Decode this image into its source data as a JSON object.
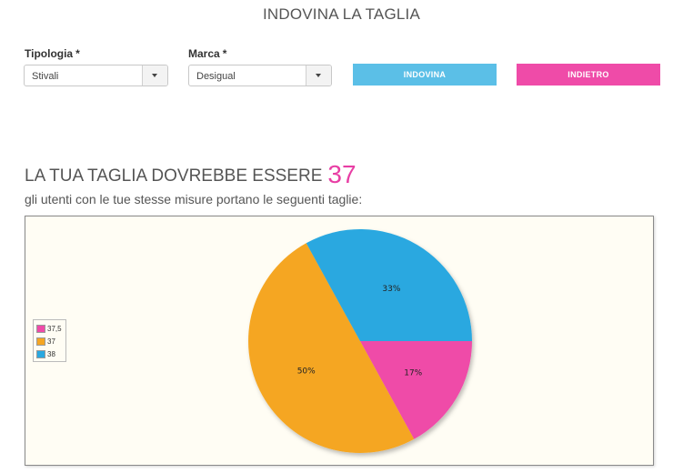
{
  "page": {
    "title": "INDOVINA LA TAGLIA"
  },
  "form": {
    "tipologia": {
      "label": "Tipologia",
      "required_mark": "*",
      "value": "Stivali"
    },
    "marca": {
      "label": "Marca",
      "required_mark": "*",
      "value": "Desigual"
    },
    "guess_button": {
      "label": "INDOVINA",
      "color": "#5bbfe7"
    },
    "back_button": {
      "label": "INDIETRO",
      "color": "#ef4ba8"
    }
  },
  "result": {
    "heading": "LA TUA TAGLIA DOVREBBE ESSERE",
    "size": "37",
    "subtitle": "gli utenti con le tue stesse misure portano le seguenti taglie:"
  },
  "chart_data": {
    "type": "pie",
    "background": "#fffdf4",
    "legend_position": "left",
    "slices": [
      {
        "label": "37,5",
        "value": 17,
        "display": "17%",
        "color": "#ef4ba8"
      },
      {
        "label": "37",
        "value": 50,
        "display": "50%",
        "color": "#f5a623"
      },
      {
        "label": "38",
        "value": 33,
        "display": "33%",
        "color": "#29a8e0"
      }
    ]
  }
}
